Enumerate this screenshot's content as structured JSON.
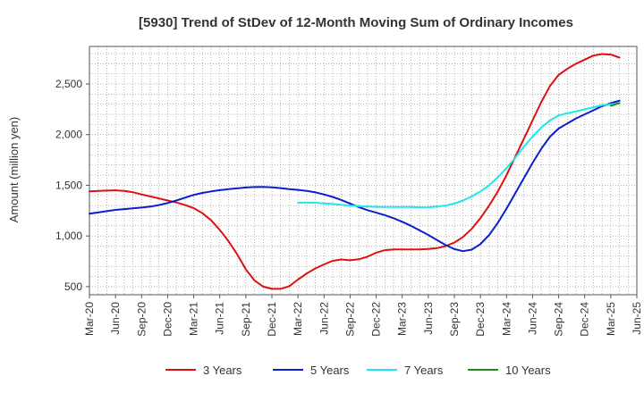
{
  "chart_data": {
    "type": "line",
    "title": "[5930]  Trend of StDev of 12-Month Moving Sum of Ordinary Incomes",
    "xlabel": "",
    "ylabel": "Amount (million yen)",
    "ylim": [
      420,
      2870
    ],
    "xlim": [
      0,
      60
    ],
    "grid": true,
    "legend_position": "bottom",
    "y_ticks": [
      {
        "value": 500,
        "label": "500"
      },
      {
        "value": 1000,
        "label": "1,000"
      },
      {
        "value": 1500,
        "label": "1,500"
      },
      {
        "value": 2000,
        "label": "2,000"
      },
      {
        "value": 2500,
        "label": "2,500"
      }
    ],
    "x_ticks": [
      {
        "value": 0,
        "label": "Mar-20"
      },
      {
        "value": 3,
        "label": "Jun-20"
      },
      {
        "value": 6,
        "label": "Sep-20"
      },
      {
        "value": 9,
        "label": "Dec-20"
      },
      {
        "value": 12,
        "label": "Mar-21"
      },
      {
        "value": 15,
        "label": "Jun-21"
      },
      {
        "value": 18,
        "label": "Sep-21"
      },
      {
        "value": 21,
        "label": "Dec-21"
      },
      {
        "value": 24,
        "label": "Mar-22"
      },
      {
        "value": 27,
        "label": "Jun-22"
      },
      {
        "value": 30,
        "label": "Sep-22"
      },
      {
        "value": 33,
        "label": "Dec-22"
      },
      {
        "value": 36,
        "label": "Mar-23"
      },
      {
        "value": 39,
        "label": "Jun-23"
      },
      {
        "value": 42,
        "label": "Sep-23"
      },
      {
        "value": 45,
        "label": "Dec-23"
      },
      {
        "value": 48,
        "label": "Mar-24"
      },
      {
        "value": 51,
        "label": "Jun-24"
      },
      {
        "value": 54,
        "label": "Sep-24"
      },
      {
        "value": 57,
        "label": "Dec-24"
      },
      {
        "value": 60,
        "label": "Mar-25"
      },
      {
        "value": 63,
        "label": "Jun-25"
      }
    ],
    "series": [
      {
        "name": "3 Years",
        "color": "#dd1111",
        "points": [
          [
            0,
            1440
          ],
          [
            1,
            1445
          ],
          [
            2,
            1448
          ],
          [
            3,
            1450
          ],
          [
            4,
            1445
          ],
          [
            5,
            1432
          ],
          [
            6,
            1410
          ],
          [
            7,
            1390
          ],
          [
            8,
            1370
          ],
          [
            9,
            1350
          ],
          [
            10,
            1330
          ],
          [
            11,
            1305
          ],
          [
            12,
            1275
          ],
          [
            13,
            1225
          ],
          [
            14,
            1155
          ],
          [
            15,
            1060
          ],
          [
            16,
            950
          ],
          [
            17,
            820
          ],
          [
            18,
            670
          ],
          [
            19,
            560
          ],
          [
            20,
            500
          ],
          [
            21,
            478
          ],
          [
            22,
            478
          ],
          [
            23,
            505
          ],
          [
            24,
            570
          ],
          [
            25,
            630
          ],
          [
            26,
            680
          ],
          [
            27,
            720
          ],
          [
            28,
            755
          ],
          [
            29,
            768
          ],
          [
            30,
            760
          ],
          [
            31,
            770
          ],
          [
            32,
            795
          ],
          [
            33,
            835
          ],
          [
            34,
            860
          ],
          [
            35,
            868
          ],
          [
            36,
            868
          ],
          [
            37,
            868
          ],
          [
            38,
            868
          ],
          [
            39,
            872
          ],
          [
            40,
            880
          ],
          [
            41,
            900
          ],
          [
            42,
            935
          ],
          [
            43,
            990
          ],
          [
            44,
            1070
          ],
          [
            45,
            1175
          ],
          [
            46,
            1300
          ],
          [
            47,
            1440
          ],
          [
            48,
            1600
          ],
          [
            49,
            1780
          ],
          [
            50,
            1960
          ],
          [
            51,
            2140
          ],
          [
            52,
            2320
          ],
          [
            53,
            2480
          ],
          [
            54,
            2590
          ],
          [
            55,
            2650
          ],
          [
            56,
            2700
          ],
          [
            57,
            2740
          ],
          [
            58,
            2780
          ],
          [
            59,
            2795
          ],
          [
            60,
            2790
          ],
          [
            61,
            2760
          ]
        ]
      },
      {
        "name": "5 Years",
        "color": "#0a1fcc",
        "points": [
          [
            0,
            1220
          ],
          [
            1,
            1232
          ],
          [
            2,
            1245
          ],
          [
            3,
            1257
          ],
          [
            4,
            1265
          ],
          [
            5,
            1272
          ],
          [
            6,
            1280
          ],
          [
            7,
            1290
          ],
          [
            8,
            1305
          ],
          [
            9,
            1325
          ],
          [
            10,
            1350
          ],
          [
            11,
            1378
          ],
          [
            12,
            1405
          ],
          [
            13,
            1425
          ],
          [
            14,
            1440
          ],
          [
            15,
            1452
          ],
          [
            16,
            1462
          ],
          [
            17,
            1470
          ],
          [
            18,
            1478
          ],
          [
            19,
            1483
          ],
          [
            20,
            1485
          ],
          [
            21,
            1480
          ],
          [
            22,
            1472
          ],
          [
            23,
            1462
          ],
          [
            24,
            1455
          ],
          [
            25,
            1445
          ],
          [
            26,
            1430
          ],
          [
            27,
            1410
          ],
          [
            28,
            1385
          ],
          [
            29,
            1355
          ],
          [
            30,
            1320
          ],
          [
            31,
            1285
          ],
          [
            32,
            1255
          ],
          [
            33,
            1230
          ],
          [
            34,
            1205
          ],
          [
            35,
            1175
          ],
          [
            36,
            1140
          ],
          [
            37,
            1100
          ],
          [
            38,
            1055
          ],
          [
            39,
            1010
          ],
          [
            40,
            960
          ],
          [
            41,
            910
          ],
          [
            42,
            870
          ],
          [
            43,
            850
          ],
          [
            44,
            865
          ],
          [
            45,
            920
          ],
          [
            46,
            1010
          ],
          [
            47,
            1130
          ],
          [
            48,
            1270
          ],
          [
            49,
            1420
          ],
          [
            50,
            1570
          ],
          [
            51,
            1720
          ],
          [
            52,
            1860
          ],
          [
            53,
            1980
          ],
          [
            54,
            2060
          ],
          [
            55,
            2110
          ],
          [
            56,
            2160
          ],
          [
            57,
            2200
          ],
          [
            58,
            2240
          ],
          [
            59,
            2280
          ],
          [
            60,
            2310
          ],
          [
            61,
            2335
          ]
        ]
      },
      {
        "name": "7 Years",
        "color": "#22e6ee",
        "points": [
          [
            24,
            1328
          ],
          [
            25,
            1330
          ],
          [
            26,
            1328
          ],
          [
            27,
            1322
          ],
          [
            28,
            1315
          ],
          [
            29,
            1307
          ],
          [
            30,
            1300
          ],
          [
            31,
            1295
          ],
          [
            32,
            1290
          ],
          [
            33,
            1287
          ],
          [
            34,
            1285
          ],
          [
            35,
            1285
          ],
          [
            36,
            1285
          ],
          [
            37,
            1285
          ],
          [
            38,
            1283
          ],
          [
            39,
            1284
          ],
          [
            40,
            1290
          ],
          [
            41,
            1300
          ],
          [
            42,
            1320
          ],
          [
            43,
            1350
          ],
          [
            44,
            1390
          ],
          [
            45,
            1440
          ],
          [
            46,
            1500
          ],
          [
            47,
            1580
          ],
          [
            48,
            1670
          ],
          [
            49,
            1770
          ],
          [
            50,
            1880
          ],
          [
            51,
            1980
          ],
          [
            52,
            2070
          ],
          [
            53,
            2140
          ],
          [
            54,
            2190
          ],
          [
            55,
            2210
          ],
          [
            56,
            2230
          ],
          [
            57,
            2250
          ],
          [
            58,
            2270
          ],
          [
            59,
            2290
          ],
          [
            60,
            2300
          ],
          [
            61,
            2310
          ]
        ]
      },
      {
        "name": "10 Years",
        "color": "#1e8a1e",
        "points": [
          [
            60,
            2285
          ],
          [
            61,
            2312
          ]
        ]
      }
    ]
  }
}
